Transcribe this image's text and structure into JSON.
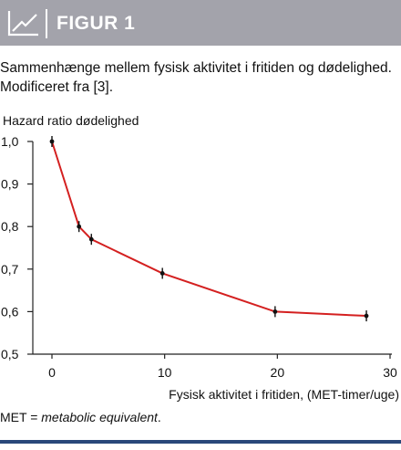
{
  "figure": {
    "label": "FIGUR 1",
    "icon": "line-chart-icon",
    "header_color": "#a3a3ab"
  },
  "caption": {
    "line1": "Sammenhænge mellem fysisk aktivitet i fritiden og dødelighed.",
    "line2": "Modificeret fra [3]."
  },
  "footnote": {
    "prefix": "MET = ",
    "term": "metabolic equivalent",
    "suffix": "."
  },
  "chart_data": {
    "type": "line",
    "ylabel": "Hazard ratio dødelighed",
    "xlabel": "Fysisk aktivitet i fritiden, (MET-timer/uge)",
    "xlim": [
      0,
      30
    ],
    "ylim": [
      0.5,
      1.0
    ],
    "xticks": [
      0,
      10,
      20,
      30
    ],
    "xtick_labels": [
      "0",
      "10",
      "20",
      "30"
    ],
    "yticks": [
      0.5,
      0.6,
      0.7,
      0.8,
      0.9,
      1.0
    ],
    "ytick_labels": [
      "0,5",
      "0,6",
      "0,7",
      "0,8",
      "0,9",
      "1,0"
    ],
    "grid": false,
    "line_color": "#d42020",
    "series": [
      {
        "x": [
          0,
          2.4,
          3.5,
          9.8,
          19.8,
          27.9
        ],
        "y": [
          1.0,
          0.8,
          0.77,
          0.69,
          0.6,
          0.59
        ]
      }
    ]
  }
}
